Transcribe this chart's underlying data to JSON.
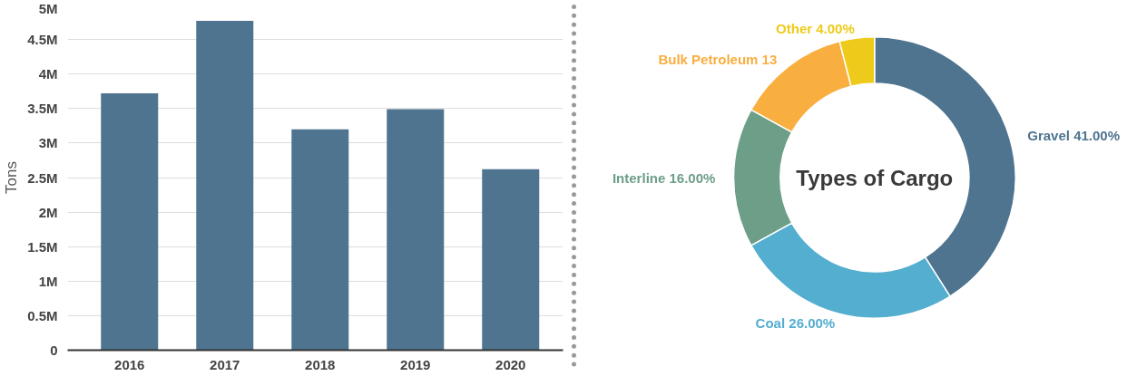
{
  "chart_data": [
    {
      "type": "bar",
      "ylabel": "Tons",
      "categories": [
        "2016",
        "2017",
        "2018",
        "2019",
        "2020"
      ],
      "values": [
        3720000,
        4770000,
        3200000,
        3490000,
        2620000
      ],
      "color": "#4e7490",
      "ylim": [
        0,
        5000000
      ],
      "yticks": [
        0,
        {
          "value": 500000,
          "label": "0.5M"
        },
        {
          "value": 1000000,
          "label": "1M"
        },
        {
          "value": 1500000,
          "label": "1.5M"
        },
        {
          "value": 2000000,
          "label": "2M"
        },
        {
          "value": 2500000,
          "label": "2.5M"
        },
        {
          "value": 3000000,
          "label": "3M"
        },
        {
          "value": 3500000,
          "label": "3.5M"
        },
        {
          "value": 4000000,
          "label": "4M"
        },
        {
          "value": 4500000,
          "label": "4.5M"
        },
        {
          "value": 5000000,
          "label": "5M"
        }
      ],
      "grid": "y"
    },
    {
      "type": "donut",
      "title": "Types of Cargo",
      "categories": [
        "Gravel",
        "Coal",
        "Interline",
        "Bulk Petroleum",
        "Other"
      ],
      "values": [
        41,
        26,
        16,
        13,
        4
      ],
      "colors": [
        "#4e7490",
        "#54aed0",
        "#6d9e88",
        "#f9ae40",
        "#eecb1a"
      ],
      "value_labels": [
        "41.00%",
        "26.00%",
        "16.00%",
        "13",
        "4.00%"
      ]
    }
  ]
}
